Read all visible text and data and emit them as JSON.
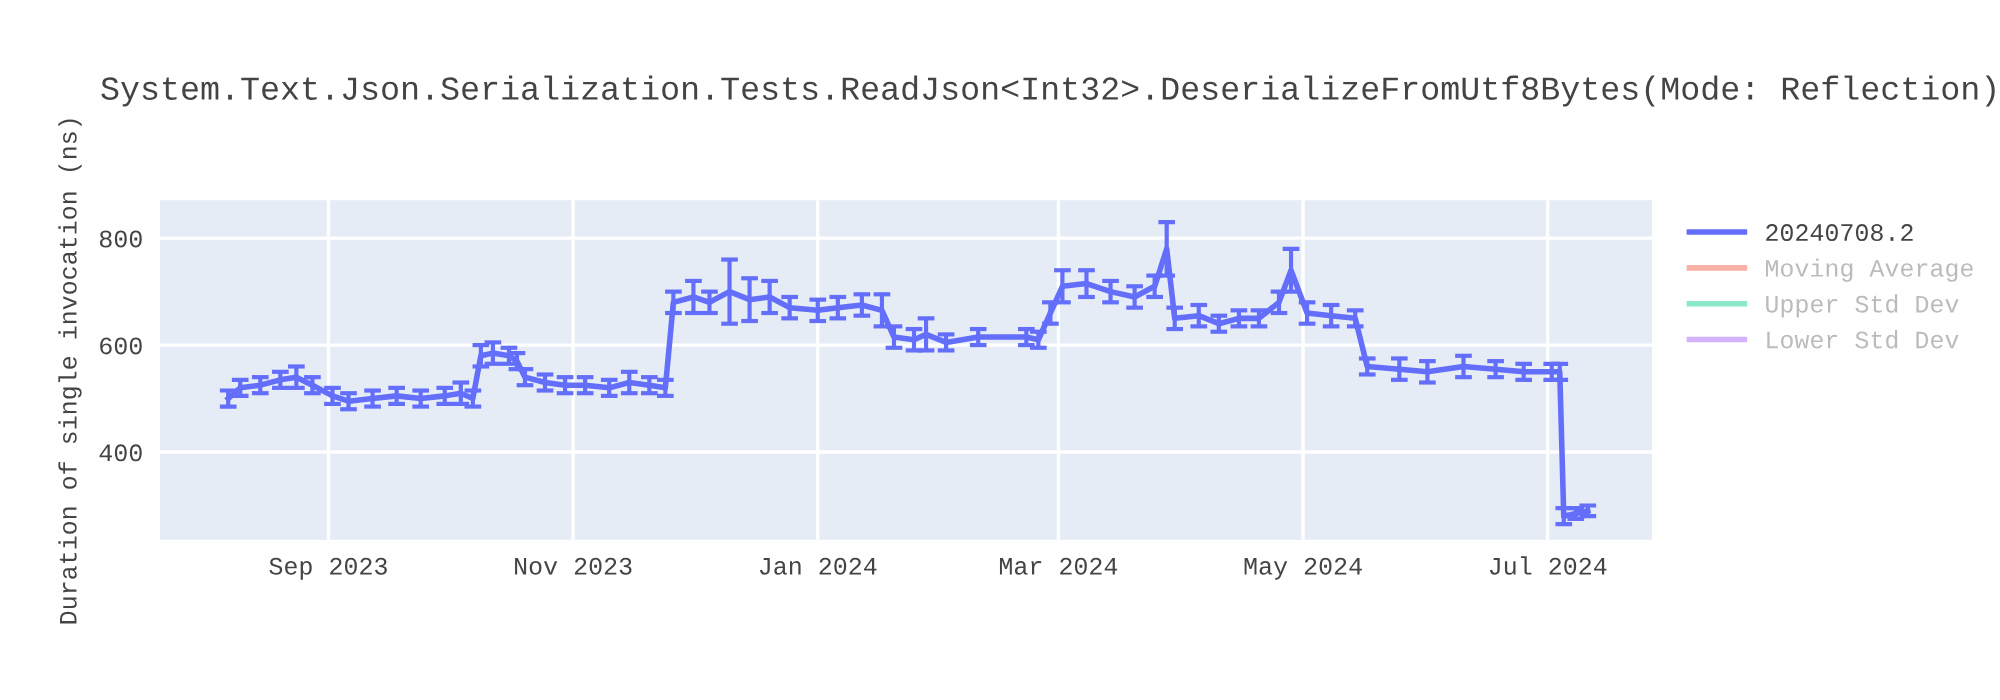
{
  "chart_data": {
    "type": "line",
    "title": "System.Text.Json.Serialization.Tests.ReadJson<Int32>.DeserializeFromUtf8Bytes(Mode: Reflection)",
    "ylabel": "Duration of single invocation (ns)",
    "xlim": [
      "2023-07-21",
      "2024-07-27"
    ],
    "xticks": [
      {
        "value": "2023-09-01",
        "label": "Sep 2023"
      },
      {
        "value": "2023-11-01",
        "label": "Nov 2023"
      },
      {
        "value": "2024-01-01",
        "label": "Jan 2024"
      },
      {
        "value": "2024-03-01",
        "label": "Mar 2024"
      },
      {
        "value": "2024-05-01",
        "label": "May 2024"
      },
      {
        "value": "2024-07-01",
        "label": "Jul 2024"
      }
    ],
    "ylim": [
      236,
      871
    ],
    "yticks": [
      400,
      600,
      800
    ],
    "grid": true,
    "legend": "right",
    "marker": "none",
    "line_style": "solid",
    "series": [
      {
        "name": "20240708.2",
        "color": "#636efa",
        "x": [
          "2023-08-07",
          "2023-08-10",
          "2023-08-15",
          "2023-08-20",
          "2023-08-24",
          "2023-08-28",
          "2023-09-02",
          "2023-09-06",
          "2023-09-12",
          "2023-09-18",
          "2023-09-24",
          "2023-09-30",
          "2023-10-04",
          "2023-10-07",
          "2023-10-09",
          "2023-10-12",
          "2023-10-16",
          "2023-10-18",
          "2023-10-20",
          "2023-10-25",
          "2023-10-30",
          "2023-11-04",
          "2023-11-10",
          "2023-11-15",
          "2023-11-20",
          "2023-11-24",
          "2023-11-26",
          "2023-12-01",
          "2023-12-05",
          "2023-12-10",
          "2023-12-15",
          "2023-12-20",
          "2023-12-25",
          "2024-01-01",
          "2024-01-06",
          "2024-01-12",
          "2024-01-17",
          "2024-01-20",
          "2024-01-25",
          "2024-01-28",
          "2024-02-02",
          "2024-02-10",
          "2024-02-22",
          "2024-02-25",
          "2024-02-28",
          "2024-03-02",
          "2024-03-08",
          "2024-03-14",
          "2024-03-20",
          "2024-03-25",
          "2024-03-28",
          "2024-03-30",
          "2024-04-05",
          "2024-04-10",
          "2024-04-15",
          "2024-04-20",
          "2024-04-25",
          "2024-04-28",
          "2024-05-02",
          "2024-05-08",
          "2024-05-14",
          "2024-05-17",
          "2024-05-25",
          "2024-06-01",
          "2024-06-10",
          "2024-06-18",
          "2024-06-25",
          "2024-07-02",
          "2024-07-04",
          "2024-07-05",
          "2024-07-08",
          "2024-07-11"
        ],
        "values": [
          500,
          520,
          525,
          535,
          540,
          525,
          505,
          495,
          500,
          505,
          500,
          505,
          510,
          500,
          580,
          585,
          580,
          570,
          540,
          530,
          525,
          525,
          520,
          530,
          525,
          520,
          680,
          690,
          680,
          700,
          685,
          690,
          670,
          665,
          670,
          675,
          665,
          615,
          610,
          620,
          605,
          615,
          615,
          610,
          660,
          710,
          715,
          700,
          690,
          710,
          780,
          650,
          655,
          640,
          650,
          650,
          680,
          740,
          660,
          655,
          650,
          560,
          555,
          550,
          560,
          555,
          550,
          550,
          550,
          280,
          285,
          290
        ],
        "errors": [
          15,
          15,
          15,
          15,
          20,
          15,
          15,
          15,
          15,
          15,
          15,
          15,
          20,
          15,
          20,
          20,
          15,
          15,
          15,
          15,
          15,
          15,
          15,
          20,
          15,
          15,
          20,
          30,
          20,
          60,
          40,
          30,
          20,
          20,
          20,
          20,
          30,
          20,
          20,
          30,
          15,
          15,
          15,
          15,
          20,
          30,
          25,
          20,
          20,
          20,
          50,
          20,
          20,
          15,
          15,
          15,
          20,
          40,
          20,
          20,
          15,
          15,
          20,
          20,
          20,
          15,
          15,
          15,
          15,
          15,
          10,
          10
        ]
      },
      {
        "name": "Moving Average",
        "color": "#f8b1a6"
      },
      {
        "name": "Upper Std Dev",
        "color": "#8ae8cc"
      },
      {
        "name": "Lower Std Dev",
        "color": "#d3b4fc"
      }
    ]
  }
}
